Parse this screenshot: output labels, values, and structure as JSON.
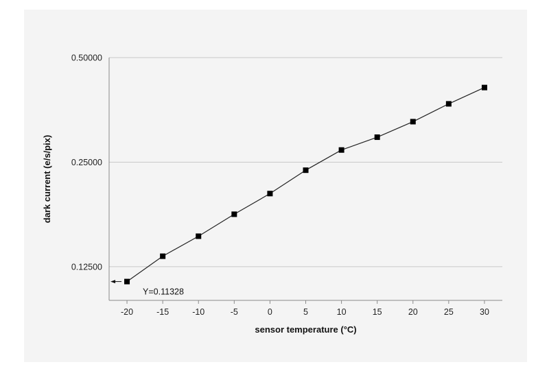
{
  "chart_data": {
    "type": "line",
    "title": "",
    "xlabel": "sensor temperature (°C)",
    "ylabel": "dark current (e/s/pix)",
    "y_scale": "log2",
    "ylim": [
      0.1,
      0.5
    ],
    "xlim": [
      -22.5,
      32.5
    ],
    "x": [
      -20,
      -15,
      -10,
      -5,
      0,
      5,
      10,
      15,
      20,
      25,
      30
    ],
    "series": [
      {
        "name": "dark current",
        "values": [
          0.11328,
          0.134,
          0.153,
          0.177,
          0.203,
          0.237,
          0.271,
          0.295,
          0.327,
          0.368,
          0.41
        ]
      }
    ],
    "x_ticks": [
      "-20",
      "-15",
      "-10",
      "-5",
      "0",
      "5",
      "10",
      "15",
      "20",
      "25",
      "30"
    ],
    "y_ticks": [
      {
        "value": 0.125,
        "label": "0.12500"
      },
      {
        "value": 0.25,
        "label": "0.25000"
      },
      {
        "value": 0.5,
        "label": "0.50000"
      }
    ],
    "grid": "horizontal",
    "annotation": {
      "text": "Y=0.11328",
      "x": -20,
      "y": 0.11328,
      "arrow": "left"
    },
    "colors": {
      "line": "#222222",
      "marker": "#000000",
      "grid": "#c8c8c8",
      "axis": "#8a8a8a"
    }
  }
}
